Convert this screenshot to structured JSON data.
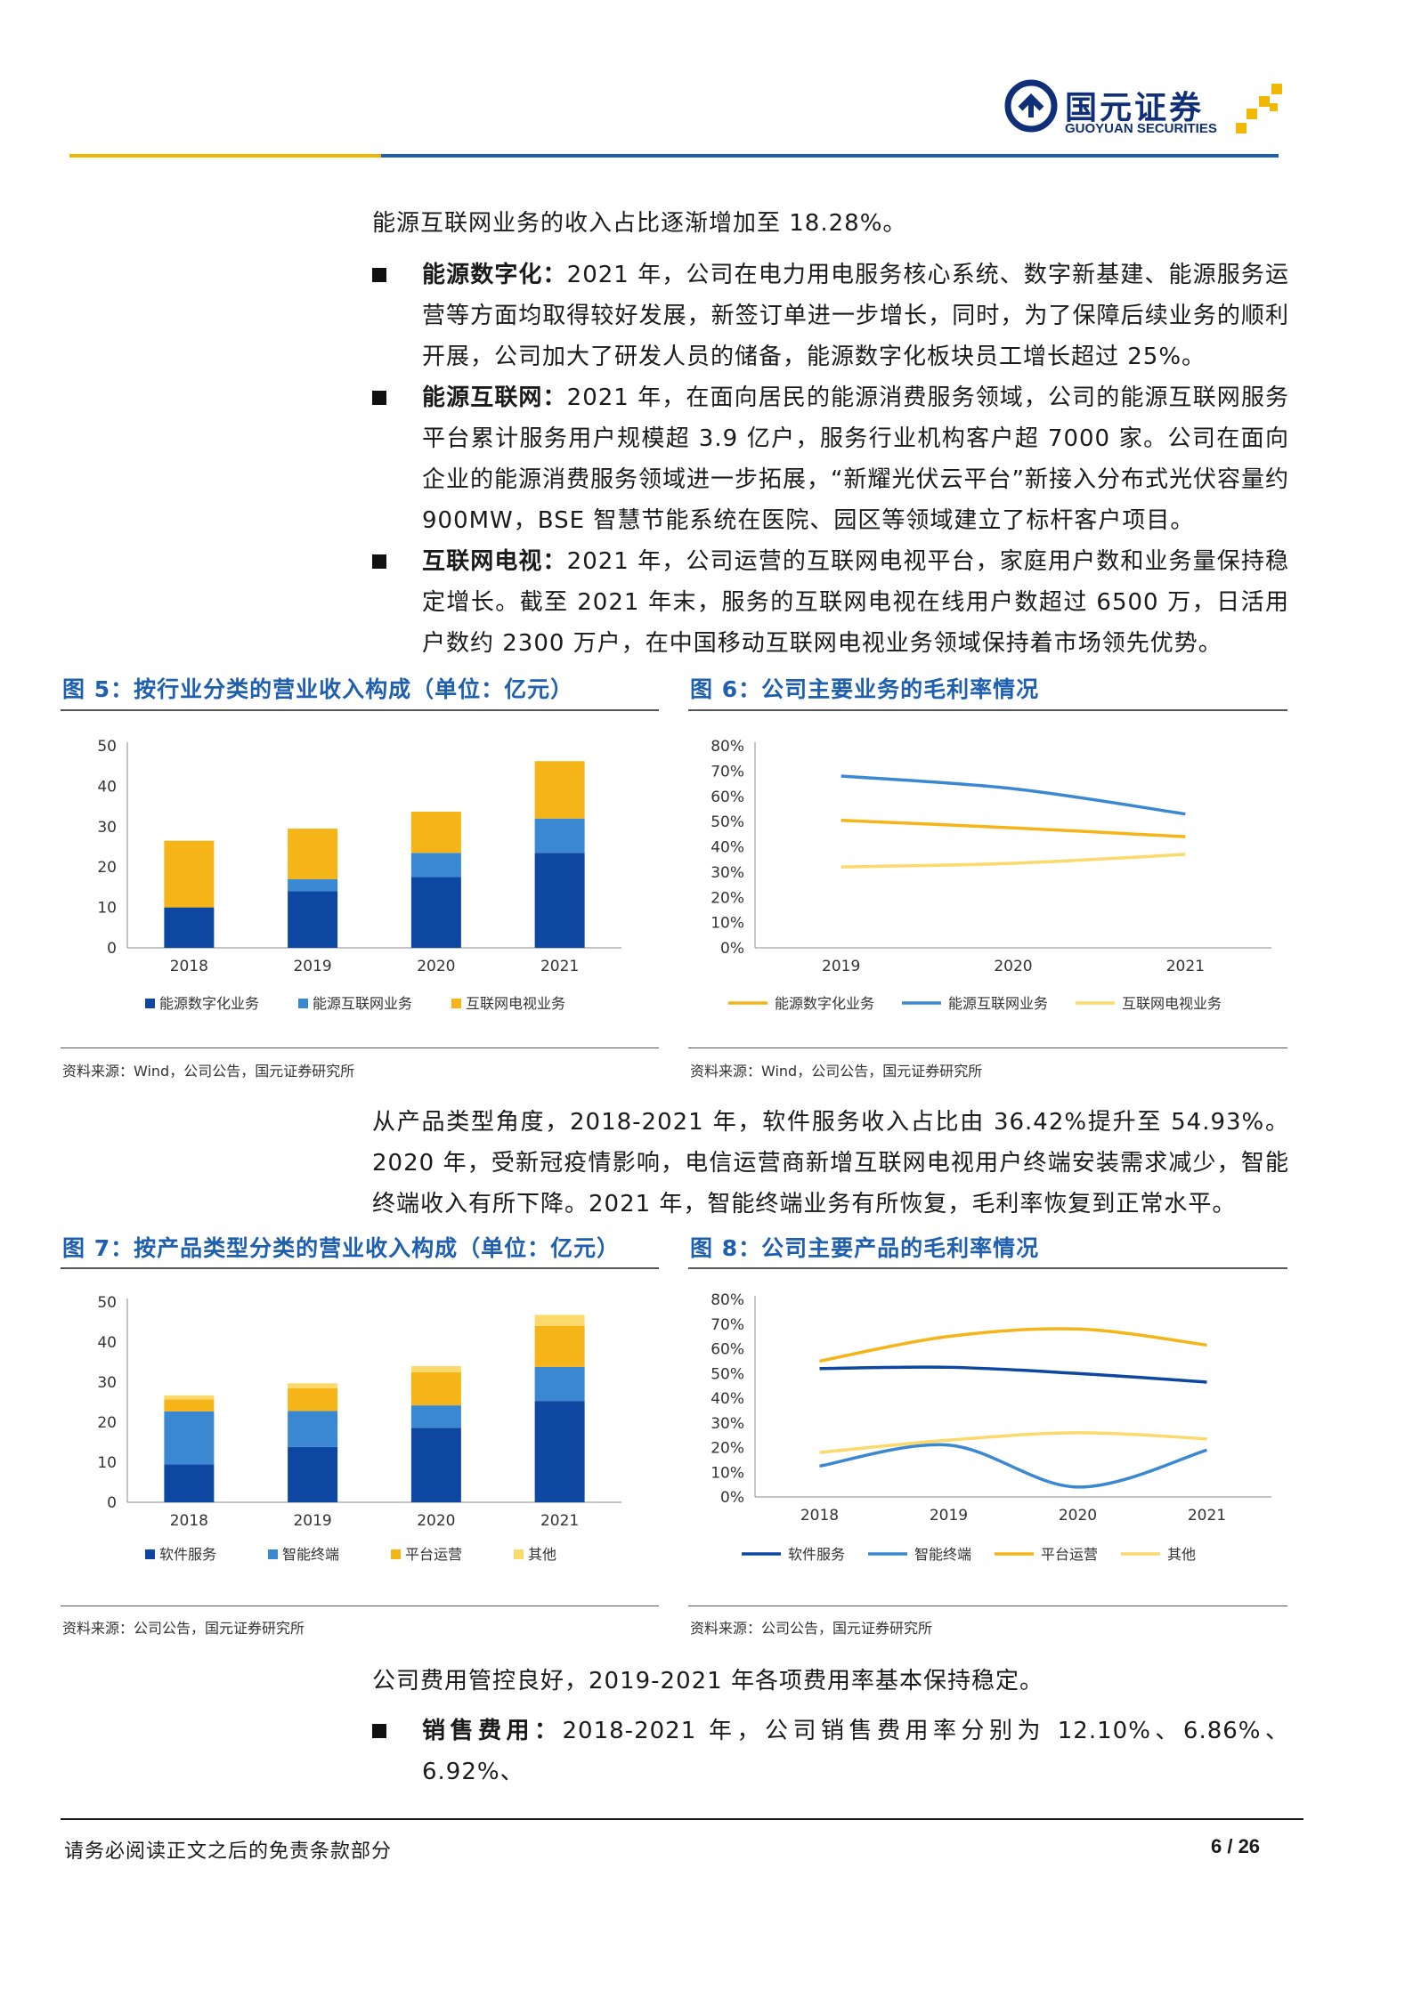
{
  "header": {
    "logo_cn": "国元证券",
    "logo_en": "GUOYUAN SECURITIES",
    "colors": {
      "gold": "#f2b705",
      "navy": "#0f2f78",
      "blue_line": "#1f5fb0"
    }
  },
  "paragraphs": {
    "p1": "能源互联网业务的收入占比逐渐增加至 18.28%。",
    "p2": "从产品类型角度，2018-2021 年，软件服务收入占比由 36.42%提升至 54.93%。2020 年，受新冠疫情影响，电信运营商新增互联网电视用户终端安装需求减少，智能终端收入有所下降。2021 年，智能终端业务有所恢复，毛利率恢复到正常水平。",
    "p3": "公司费用管控良好，2019-2021 年各项费用率基本保持稳定。"
  },
  "bullets": [
    {
      "label": "能源数字化：",
      "text": "2021 年，公司在电力用电服务核心系统、数字新基建、能源服务运营等方面均取得较好发展，新签订单进一步增长，同时，为了保障后续业务的顺利开展，公司加大了研发人员的储备，能源数字化板块员工增长超过 25%。"
    },
    {
      "label": "能源互联网：",
      "text": "2021 年，在面向居民的能源消费服务领域，公司的能源互联网服务平台累计服务用户规模超 3.9 亿户，服务行业机构客户超 7000 家。公司在面向企业的能源消费服务领域进一步拓展，“新耀光伏云平台”新接入分布式光伏容量约 900MW，BSE 智慧节能系统在医院、园区等领域建立了标杆客户项目。"
    },
    {
      "label": "互联网电视：",
      "text": "2021 年，公司运营的互联网电视平台，家庭用户数和业务量保持稳定增长。截至 2021 年末，服务的互联网电视在线用户数超过 6500 万，日活用户数约 2300 万户，在中国移动互联网电视业务领域保持着市场领先优势。"
    },
    {
      "label": "销售费用：",
      "text": "2018-2021 年，公司销售费用率分别为 12.10%、6.86%、6.92%、"
    }
  ],
  "figures": {
    "fig5": {
      "title": "图 5：按行业分类的营业收入构成（单位：亿元）",
      "source": "资料来源：Wind，公司公告，国元证券研究所"
    },
    "fig6": {
      "title": "图 6：公司主要业务的毛利率情况",
      "source": "资料来源：Wind，公司公告，国元证券研究所"
    },
    "fig7": {
      "title": "图 7：按产品类型分类的营业收入构成（单位：亿元）",
      "source": "资料来源：公司公告，国元证券研究所"
    },
    "fig8": {
      "title": "图 8：公司主要产品的毛利率情况",
      "source": "资料来源：公司公告，国元证券研究所"
    }
  },
  "chart_data": [
    {
      "id": "fig5",
      "type": "bar",
      "stacked": true,
      "categories": [
        "2018",
        "2019",
        "2020",
        "2021"
      ],
      "ylim": [
        0,
        50
      ],
      "yticks": [
        0,
        10,
        20,
        30,
        40,
        50
      ],
      "legend_position": "bottom",
      "series": [
        {
          "name": "能源数字化业务",
          "color": "#0d47a1",
          "values": [
            10.0,
            14.0,
            17.5,
            23.5
          ]
        },
        {
          "name": "能源互联网业务",
          "color": "#3a88d1",
          "values": [
            0.0,
            3.0,
            6.0,
            8.5
          ]
        },
        {
          "name": "互联网电视业务",
          "color": "#f5b417",
          "values": [
            16.5,
            12.5,
            10.2,
            14.2
          ]
        }
      ]
    },
    {
      "id": "fig6",
      "type": "line",
      "categories": [
        "2019",
        "2020",
        "2021"
      ],
      "ylim": [
        0,
        80
      ],
      "yticks": [
        0,
        10,
        20,
        30,
        40,
        50,
        60,
        70,
        80
      ],
      "ytick_suffix": "%",
      "legend_position": "bottom",
      "series": [
        {
          "name": "能源数字化业务",
          "color": "#f5b417",
          "values": [
            50.5,
            47.5,
            44.0
          ]
        },
        {
          "name": "能源互联网业务",
          "color": "#3a88d1",
          "values": [
            68.0,
            63.0,
            53.0
          ]
        },
        {
          "name": "互联网电视业务",
          "color": "#fbd96b",
          "values": [
            32.0,
            33.5,
            37.0
          ]
        }
      ]
    },
    {
      "id": "fig7",
      "type": "bar",
      "stacked": true,
      "categories": [
        "2018",
        "2019",
        "2020",
        "2021"
      ],
      "ylim": [
        0,
        50
      ],
      "yticks": [
        0,
        10,
        20,
        30,
        40,
        50
      ],
      "legend_position": "bottom",
      "series": [
        {
          "name": "软件服务",
          "color": "#0d47a1",
          "values": [
            9.5,
            13.8,
            18.6,
            25.3
          ]
        },
        {
          "name": "智能终端",
          "color": "#3a88d1",
          "values": [
            13.2,
            9.0,
            5.6,
            8.5
          ]
        },
        {
          "name": "平台运营",
          "color": "#f5b417",
          "values": [
            3.0,
            5.7,
            8.3,
            10.2
          ]
        },
        {
          "name": "其他",
          "color": "#fbd96b",
          "values": [
            1.0,
            1.2,
            1.5,
            2.8
          ]
        }
      ]
    },
    {
      "id": "fig8",
      "type": "line",
      "categories": [
        "2018",
        "2019",
        "2020",
        "2021"
      ],
      "ylim": [
        0,
        80
      ],
      "yticks": [
        0,
        10,
        20,
        30,
        40,
        50,
        60,
        70,
        80
      ],
      "ytick_suffix": "%",
      "legend_position": "bottom",
      "series": [
        {
          "name": "软件服务",
          "color": "#0d47a1",
          "values": [
            52.0,
            52.5,
            50.0,
            46.5
          ]
        },
        {
          "name": "智能终端",
          "color": "#3a88d1",
          "values": [
            12.5,
            21.0,
            4.0,
            19.0
          ]
        },
        {
          "name": "平台运营",
          "color": "#f5b417",
          "values": [
            55.0,
            65.0,
            68.0,
            61.5
          ]
        },
        {
          "name": "其他",
          "color": "#fbd96b",
          "values": [
            18.0,
            23.0,
            26.0,
            23.5
          ]
        }
      ]
    }
  ],
  "footer": {
    "disclaimer": "请务必阅读正文之后的免责条款部分",
    "page": "6 / 26"
  }
}
